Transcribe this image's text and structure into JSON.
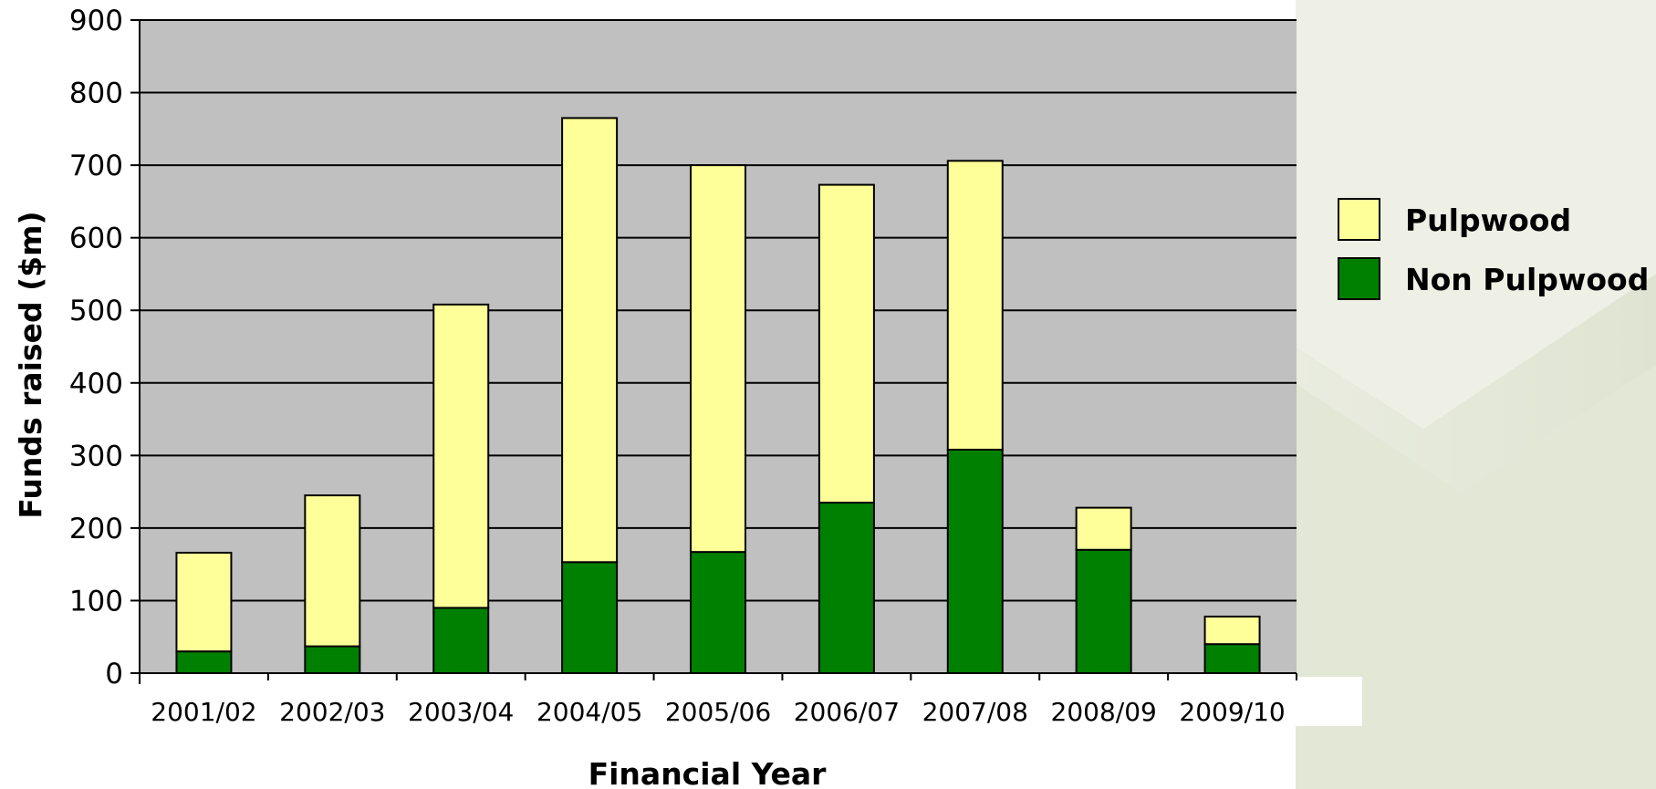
{
  "chart_data": {
    "type": "bar",
    "stacked": true,
    "categories": [
      "2001/02",
      "2002/03",
      "2003/04",
      "2004/05",
      "2005/06",
      "2006/07",
      "2007/08",
      "2008/09",
      "2009/10"
    ],
    "series": [
      {
        "name": "Non Pulpwood",
        "values": [
          30,
          37,
          90,
          153,
          167,
          235,
          308,
          170,
          40
        ],
        "color": "#008000"
      },
      {
        "name": "Pulpwood",
        "values": [
          136,
          208,
          418,
          612,
          533,
          438,
          398,
          58,
          38
        ],
        "color": "#ffff99"
      }
    ],
    "xlabel": "Financial Year",
    "ylabel": "Funds raised ($m)",
    "ylim": [
      0,
      900
    ],
    "yticks": [
      "0",
      "100",
      "200",
      "300",
      "400",
      "500",
      "600",
      "700",
      "800",
      "900"
    ],
    "grid": true,
    "legend_position": "right",
    "plot_background": "#c0c0c0"
  }
}
